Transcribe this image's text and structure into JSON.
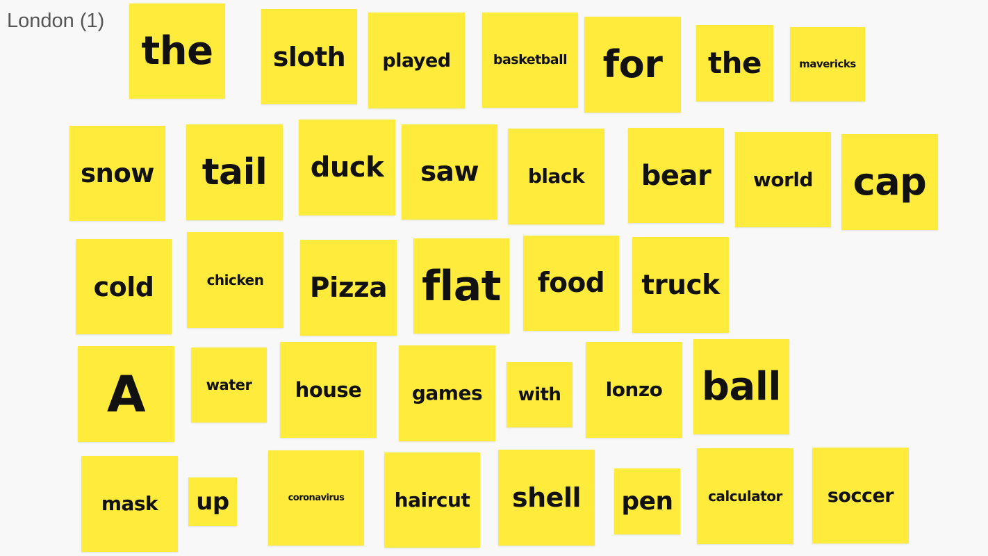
{
  "board": {
    "title": "London (1)",
    "note_color": "#ffeb3b",
    "text_color": "#111111"
  },
  "notes": [
    "the",
    "sloth",
    "played",
    "basketball",
    "for",
    "the",
    "mavericks",
    "snow",
    "tail",
    "duck",
    "saw",
    "black",
    "bear",
    "world",
    "cap",
    "cold",
    "chicken",
    "Pizza",
    "flat",
    "food",
    "truck",
    "A",
    "water",
    "house",
    "games",
    "with",
    "lonzo",
    "ball",
    "mask",
    "up",
    "coronavirus",
    "haircut",
    "shell",
    "pen",
    "calculator",
    "soccer"
  ]
}
